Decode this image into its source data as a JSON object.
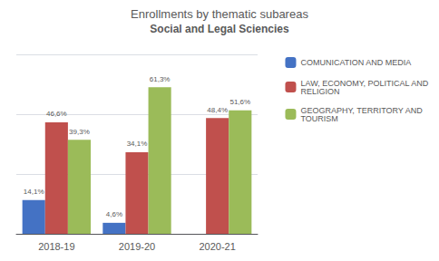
{
  "chart_data": {
    "type": "bar",
    "title": "Enrollments by thematic subareas",
    "subtitle": "Social and Legal Sciencies",
    "categories": [
      "2018-19",
      "2019-20",
      "2020-21"
    ],
    "series": [
      {
        "name": "COMUNICATION AND MEDIA",
        "color": "#4472c4",
        "values": [
          14.1,
          4.6,
          0
        ],
        "value_labels": [
          "14,1%",
          "4,6%",
          null
        ]
      },
      {
        "name": "LAW, ECONOMY, POLITICAL AND\nRELIGION",
        "color": "#c0504d",
        "values": [
          46.6,
          34.1,
          48.4
        ],
        "value_labels": [
          "46,6%",
          "34,1%",
          "48,4%"
        ]
      },
      {
        "name": "GEOGRAPHY, TERRITORY AND\nTOURISM",
        "color": "#9bbb59",
        "values": [
          39.3,
          61.3,
          51.6
        ],
        "value_labels": [
          "39,3%",
          "61,3%",
          "51,6%"
        ]
      }
    ],
    "ylim": [
      0,
      75
    ],
    "yticks": [
      0,
      25,
      50,
      75
    ],
    "grid": true,
    "legend": "right",
    "data_labels": true,
    "tick_labels": "x"
  }
}
